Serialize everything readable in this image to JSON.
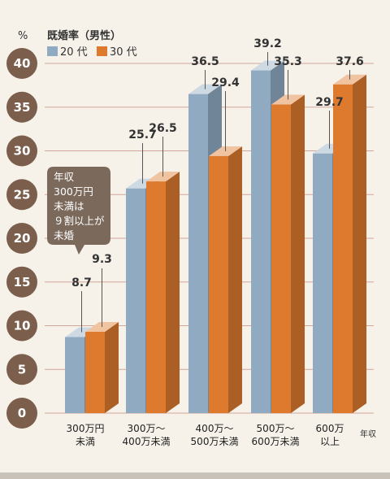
{
  "chart_data": {
    "type": "bar",
    "unit_label": "%",
    "title": "既婚率（男性）",
    "categories": [
      [
        "300万円",
        "未満"
      ],
      [
        "300万～",
        "400万未満"
      ],
      [
        "400万～",
        "500万未満"
      ],
      [
        "500万～",
        "600万未満"
      ],
      [
        "600万",
        "以上"
      ]
    ],
    "series": [
      {
        "name": "20 代",
        "color": "#8faac1",
        "values": [
          8.7,
          25.7,
          36.5,
          39.2,
          29.7
        ]
      },
      {
        "name": "30 代",
        "color": "#dd7a2e",
        "values": [
          9.3,
          26.5,
          29.4,
          35.3,
          37.6
        ]
      }
    ],
    "yticks": [
      0,
      5,
      10,
      15,
      20,
      25,
      30,
      35,
      40
    ],
    "ylim": [
      0,
      40
    ],
    "xlabel": "年収",
    "grid": true,
    "legend": "top-left",
    "annotation": [
      "年収",
      "300万円",
      "未満は",
      "９割以上が",
      "未婚"
    ]
  }
}
